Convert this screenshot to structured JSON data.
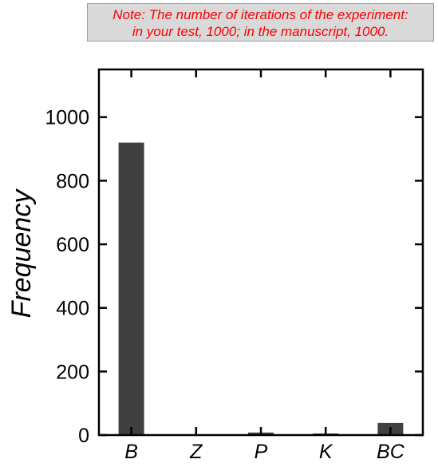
{
  "note": {
    "line1": "Note: The number of iterations of the experiment:",
    "line2": "in your test, 1000; in the manuscript, 1000."
  },
  "colors": {
    "bar": "#404040",
    "note_text": "#ff0000",
    "note_background": "#d9d9d9"
  },
  "chart_data": {
    "type": "bar",
    "categories": [
      "B",
      "Z",
      "P",
      "K",
      "BC"
    ],
    "values": [
      920,
      0,
      8,
      5,
      38
    ],
    "ylabel": "Frequency",
    "xlabel": "",
    "ylim": [
      0,
      1150
    ],
    "yticks": [
      0,
      200,
      400,
      600,
      800,
      1000
    ],
    "grid": false,
    "legend": "none"
  }
}
